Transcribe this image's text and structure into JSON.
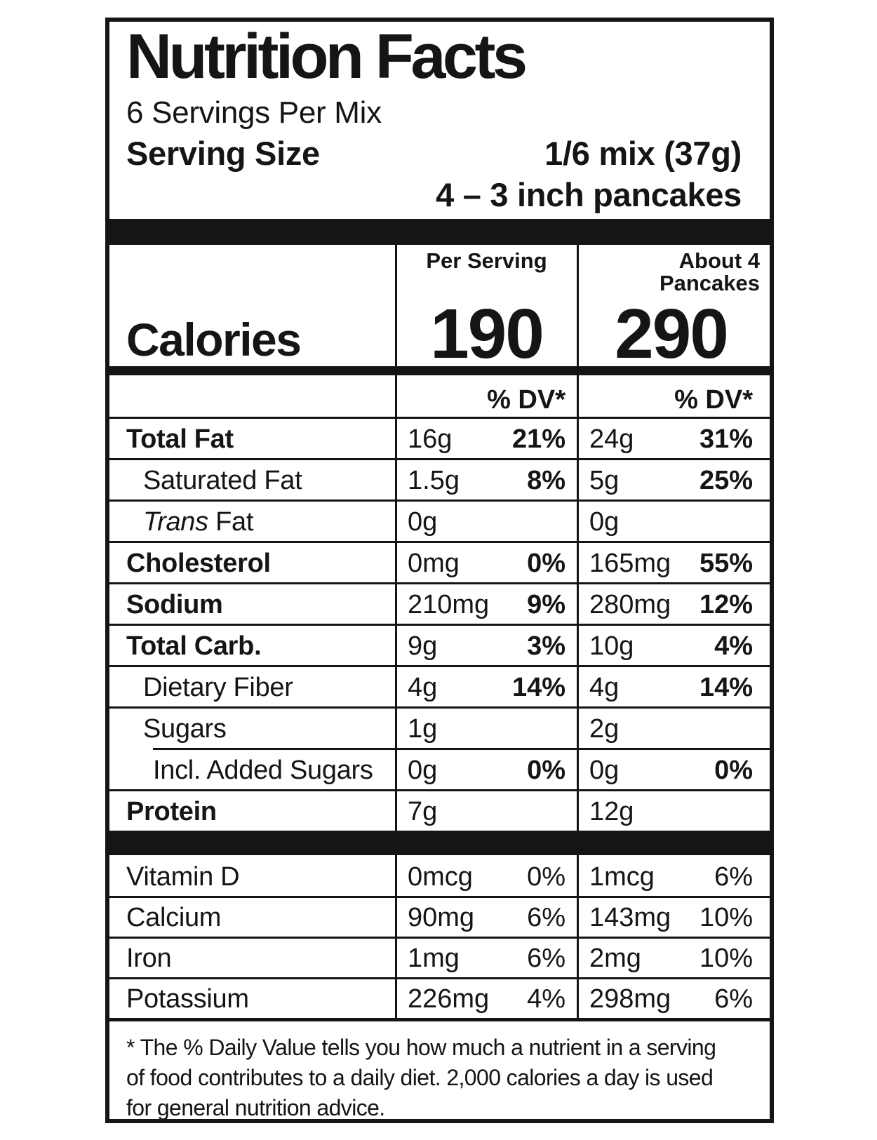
{
  "label": {
    "title": "Nutrition Facts",
    "servings_per_container": "6 Servings Per Mix",
    "serving_size": {
      "label": "Serving Size",
      "value": "1/6 mix (37g)",
      "description": "4 – 3 inch pancakes"
    },
    "columns": {
      "col1_header": "Per Serving",
      "col2_header": [
        "About 4",
        "Pancakes"
      ]
    },
    "calories": {
      "label": "Calories",
      "per_serving": "190",
      "per_pancakes": "290"
    },
    "dv_header": "% DV*",
    "nutrients": [
      {
        "name": "Total Fat",
        "bold": true,
        "indent": 0,
        "c1": {
          "amount": "16g",
          "dv": "21%"
        },
        "c2": {
          "amount": "24g",
          "dv": "31%"
        }
      },
      {
        "name": "Saturated Fat",
        "bold": false,
        "indent": 1,
        "c1": {
          "amount": "1.5g",
          "dv": "8%"
        },
        "c2": {
          "amount": "5g",
          "dv": "25%"
        }
      },
      {
        "name": "Fat",
        "name_italic_prefix": "Trans",
        "bold": false,
        "indent": 1,
        "c1": {
          "amount": "0g",
          "dv": ""
        },
        "c2": {
          "amount": "0g",
          "dv": ""
        }
      },
      {
        "name": "Cholesterol",
        "bold": true,
        "indent": 0,
        "c1": {
          "amount": "0mg",
          "dv": "0%"
        },
        "c2": {
          "amount": "165mg",
          "dv": "55%"
        }
      },
      {
        "name": "Sodium",
        "bold": true,
        "indent": 0,
        "c1": {
          "amount": "210mg",
          "dv": "9%"
        },
        "c2": {
          "amount": "280mg",
          "dv": "12%"
        }
      },
      {
        "name": "Total Carb.",
        "bold": true,
        "indent": 0,
        "c1": {
          "amount": "9g",
          "dv": "3%"
        },
        "c2": {
          "amount": "10g",
          "dv": "4%"
        }
      },
      {
        "name": "Dietary Fiber",
        "bold": false,
        "indent": 1,
        "c1": {
          "amount": "4g",
          "dv": "14%"
        },
        "c2": {
          "amount": "4g",
          "dv": "14%"
        }
      },
      {
        "name": "Sugars",
        "bold": false,
        "indent": 1,
        "c1": {
          "amount": "1g",
          "dv": ""
        },
        "c2": {
          "amount": "2g",
          "dv": ""
        }
      },
      {
        "name": "Incl. Added Sugars",
        "bold": false,
        "indent": 2,
        "partial_rule": true,
        "c1": {
          "amount": "0g",
          "dv": "0%"
        },
        "c2": {
          "amount": "0g",
          "dv": "0%"
        }
      },
      {
        "name": "Protein",
        "bold": true,
        "indent": 0,
        "c1": {
          "amount": "7g",
          "dv": ""
        },
        "c2": {
          "amount": "12g",
          "dv": ""
        }
      }
    ],
    "micronutrients": [
      {
        "name": "Vitamin D",
        "c1": {
          "amount": "0mcg",
          "dv": "0%"
        },
        "c2": {
          "amount": "1mcg",
          "dv": "6%"
        }
      },
      {
        "name": "Calcium",
        "c1": {
          "amount": "90mg",
          "dv": "6%"
        },
        "c2": {
          "amount": "143mg",
          "dv": "10%"
        }
      },
      {
        "name": "Iron",
        "c1": {
          "amount": "1mg",
          "dv": "6%"
        },
        "c2": {
          "amount": "2mg",
          "dv": "10%"
        }
      },
      {
        "name": "Potassium",
        "c1": {
          "amount": "226mg",
          "dv": "4%"
        },
        "c2": {
          "amount": "298mg",
          "dv": "6%"
        }
      }
    ],
    "footnote": "* The % Daily Value tells you how much a nutrient in a serving of food contributes to a daily diet. 2,000 calories a day is used for general nutrition advice.",
    "colors": {
      "text": "#151515",
      "background": "#ffffff"
    }
  }
}
